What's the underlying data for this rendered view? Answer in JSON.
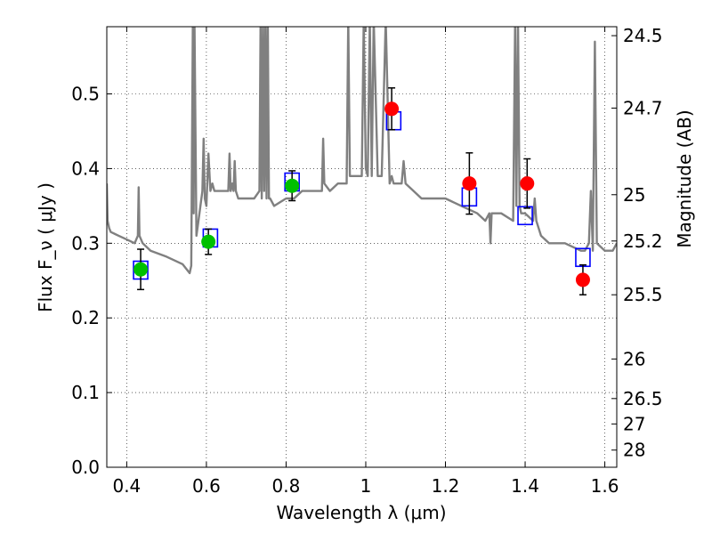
{
  "chart_data": {
    "type": "scatter",
    "xlabel": "Wavelength  λ (μm)",
    "ylabel": "Flux  F_ν  ( μJy )",
    "ylabel_right": "Magnitude (AB)",
    "xlim": [
      0.35,
      1.63
    ],
    "ylim": [
      0.0,
      0.59
    ],
    "grid": true,
    "x_ticks": [
      0.4,
      0.6,
      0.8,
      1.0,
      1.2,
      1.4,
      1.6
    ],
    "x_tick_labels": [
      "0.4",
      "0.6",
      "0.8",
      "1",
      "1.2",
      "1.4",
      "1.6"
    ],
    "y_ticks": [
      0.0,
      0.1,
      0.2,
      0.3,
      0.4,
      0.5
    ],
    "y_tick_labels": [
      "0.0",
      "0.1",
      "0.2",
      "0.3",
      "0.4",
      "0.5"
    ],
    "right_ticks": [
      {
        "label": "24.5",
        "flux": 0.578
      },
      {
        "label": "24.7",
        "flux": 0.481
      },
      {
        "label": "25",
        "flux": 0.365
      },
      {
        "label": "25.2",
        "flux": 0.303
      },
      {
        "label": "25.5",
        "flux": 0.231
      },
      {
        "label": "26",
        "flux": 0.145
      },
      {
        "label": "26.5",
        "flux": 0.092
      },
      {
        "label": "27",
        "flux": 0.058
      },
      {
        "label": "28",
        "flux": 0.023
      }
    ],
    "colors": {
      "spectrum": "#808080",
      "green_points": "#00c000",
      "red_points": "#ff0000",
      "model_boxes": "#0000ff",
      "errorbars": "#000000"
    },
    "series": [
      {
        "kind": "spectrum",
        "x": [
          0.35,
          0.352,
          0.356,
          0.36,
          0.38,
          0.4,
          0.42,
          0.428,
          0.43,
          0.432,
          0.44,
          0.46,
          0.5,
          0.54,
          0.558,
          0.562,
          0.566,
          0.568,
          0.57,
          0.575,
          0.58,
          0.585,
          0.59,
          0.593,
          0.596,
          0.6,
          0.605,
          0.61,
          0.615,
          0.62,
          0.64,
          0.655,
          0.658,
          0.661,
          0.665,
          0.668,
          0.671,
          0.674,
          0.68,
          0.7,
          0.72,
          0.733,
          0.736,
          0.739,
          0.742,
          0.745,
          0.748,
          0.751,
          0.754,
          0.757,
          0.76,
          0.77,
          0.8,
          0.82,
          0.84,
          0.86,
          0.88,
          0.89,
          0.893,
          0.896,
          0.91,
          0.93,
          0.952,
          0.956,
          0.96,
          0.98,
          0.99,
          0.995,
          1.0,
          1.005,
          1.01,
          1.015,
          1.02,
          1.03,
          1.04,
          1.05,
          1.06,
          1.065,
          1.07,
          1.08,
          1.09,
          1.095,
          1.1,
          1.12,
          1.14,
          1.18,
          1.2,
          1.24,
          1.28,
          1.3,
          1.31,
          1.313,
          1.316,
          1.34,
          1.37,
          1.375,
          1.378,
          1.382,
          1.386,
          1.39,
          1.4,
          1.42,
          1.424,
          1.428,
          1.44,
          1.46,
          1.5,
          1.54,
          1.55,
          1.56,
          1.565,
          1.57,
          1.575,
          1.58,
          1.6,
          1.62,
          1.63
        ],
        "y": [
          0.38,
          0.33,
          0.32,
          0.315,
          0.31,
          0.305,
          0.3,
          0.31,
          0.375,
          0.31,
          0.3,
          0.29,
          0.282,
          0.272,
          0.26,
          0.27,
          0.6,
          0.34,
          0.6,
          0.31,
          0.33,
          0.35,
          0.37,
          0.44,
          0.36,
          0.35,
          0.42,
          0.37,
          0.38,
          0.37,
          0.37,
          0.37,
          0.42,
          0.37,
          0.38,
          0.37,
          0.41,
          0.37,
          0.36,
          0.36,
          0.36,
          0.37,
          0.6,
          0.36,
          0.6,
          0.37,
          0.6,
          0.36,
          0.6,
          0.36,
          0.36,
          0.35,
          0.36,
          0.36,
          0.37,
          0.37,
          0.37,
          0.37,
          0.44,
          0.38,
          0.37,
          0.38,
          0.38,
          0.6,
          0.39,
          0.39,
          0.39,
          0.6,
          0.4,
          0.39,
          0.6,
          0.39,
          0.6,
          0.39,
          0.39,
          0.6,
          0.38,
          0.39,
          0.38,
          0.38,
          0.38,
          0.41,
          0.38,
          0.37,
          0.36,
          0.36,
          0.36,
          0.35,
          0.34,
          0.33,
          0.34,
          0.3,
          0.34,
          0.34,
          0.33,
          0.6,
          0.35,
          0.6,
          0.35,
          0.34,
          0.34,
          0.33,
          0.36,
          0.33,
          0.31,
          0.3,
          0.3,
          0.29,
          0.29,
          0.3,
          0.37,
          0.29,
          0.57,
          0.3,
          0.29,
          0.29,
          0.3
        ]
      },
      {
        "kind": "observed-green",
        "x": [
          0.435,
          0.605,
          0.815
        ],
        "y": [
          0.265,
          0.302,
          0.377
        ],
        "yerr": [
          0.027,
          0.017,
          0.02
        ]
      },
      {
        "kind": "observed-red",
        "x": [
          1.065,
          1.26,
          1.405,
          1.545
        ],
        "y": [
          0.48,
          0.38,
          0.38,
          0.251
        ],
        "yerr": [
          0.028,
          0.041,
          0.033,
          0.02
        ]
      },
      {
        "kind": "model-boxes",
        "x": [
          0.435,
          0.61,
          0.815,
          1.07,
          1.26,
          1.4,
          1.545
        ],
        "y": [
          0.264,
          0.307,
          0.382,
          0.464,
          0.362,
          0.337,
          0.281
        ]
      }
    ]
  }
}
